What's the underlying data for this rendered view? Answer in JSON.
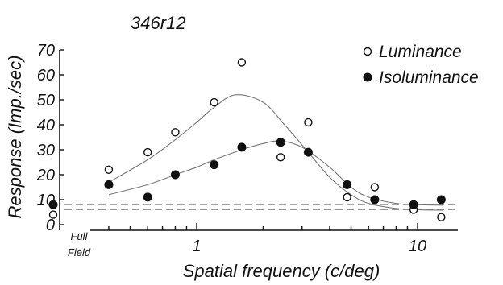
{
  "chart_data": {
    "type": "scatter",
    "title": "346r12",
    "xlabel": "Spatial frequency (c/deg)",
    "ylabel": "Response (Imp./sec)",
    "x_scale": "log",
    "xlim": [
      0.35,
      14
    ],
    "ylim": [
      0,
      70
    ],
    "y_ticks": [
      0,
      10,
      20,
      30,
      40,
      50,
      60,
      70
    ],
    "x_ticks": [
      1,
      10
    ],
    "x_tick_labels": [
      "1",
      "10"
    ],
    "full_field_label_lines": [
      "Full",
      "Field"
    ],
    "legend_position": "top-right",
    "colors": {
      "axis": "#111111",
      "fit": "#777777",
      "baseline": "#888888"
    },
    "series": [
      {
        "name": "Luminance",
        "marker": "open-circle",
        "full_field": 4,
        "x": [
          0.4,
          0.6,
          0.8,
          1.2,
          1.6,
          2.4,
          3.2,
          4.8,
          6.4,
          9.6,
          12.8
        ],
        "values": [
          22,
          29,
          37,
          49,
          65,
          27,
          41,
          11,
          15,
          6,
          3
        ],
        "fit": {
          "x": [
            0.4,
            0.6,
            0.8,
            1.0,
            1.2,
            1.5,
            2.0,
            2.5,
            3.2,
            4.0,
            5.0,
            6.0,
            8.0,
            10.0,
            13.0
          ],
          "y": [
            17,
            26,
            34,
            41,
            47,
            52,
            49,
            40,
            29,
            19,
            12,
            8.5,
            6.5,
            6,
            5.8
          ]
        },
        "baseline_level": 6
      },
      {
        "name": "Isoluminance",
        "marker": "filled-circle",
        "full_field": 8,
        "x": [
          0.4,
          0.6,
          0.8,
          1.2,
          1.6,
          2.4,
          3.2,
          4.8,
          6.4,
          9.6,
          12.8
        ],
        "values": [
          16,
          11,
          20,
          24,
          31,
          33,
          29,
          16,
          10,
          8,
          10
        ],
        "fit": {
          "x": [
            0.4,
            0.6,
            0.8,
            1.0,
            1.2,
            1.6,
            2.0,
            2.4,
            3.0,
            4.0,
            5.0,
            6.0,
            8.0,
            10.0,
            13.0
          ],
          "y": [
            12,
            16,
            20,
            23,
            26,
            30,
            32.5,
            33.5,
            31,
            23,
            15,
            11,
            8.5,
            8,
            7.8
          ]
        },
        "baseline_level": 8
      }
    ]
  }
}
